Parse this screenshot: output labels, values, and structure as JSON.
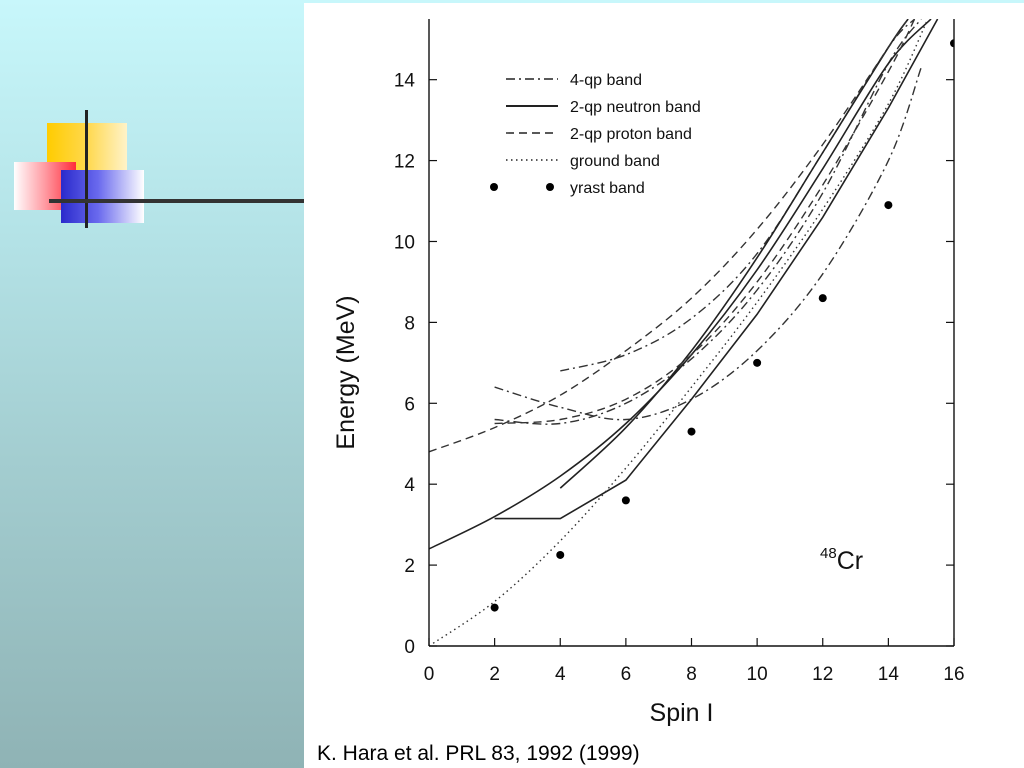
{
  "caption": "K. Hara et al. PRL 83, 1992 (1999)",
  "chart_data": {
    "type": "line",
    "title": "",
    "xlabel": "Spin I",
    "ylabel": "Energy (MeV)",
    "xlim": [
      0,
      16
    ],
    "ylim": [
      0,
      15.5
    ],
    "x_ticks": [
      0,
      2,
      4,
      6,
      8,
      10,
      12,
      14,
      16
    ],
    "y_ticks": [
      0,
      2,
      4,
      6,
      8,
      10,
      12,
      14
    ],
    "grid": false,
    "legend_position": "top-left",
    "annotation": {
      "sup": "48",
      "text": "Cr"
    },
    "series": [
      {
        "name": "4-qp band",
        "style": "dashdot",
        "lines": [
          {
            "x": [
              2,
              4,
              6,
              8,
              10,
              12,
              14,
              15
            ],
            "y": [
              6.4,
              5.9,
              5.6,
              6.1,
              7.3,
              9.2,
              12.0,
              14.3
            ]
          },
          {
            "x": [
              2,
              4,
              6,
              8,
              10,
              12,
              14,
              15
            ],
            "y": [
              5.6,
              5.5,
              6.0,
              7.1,
              8.8,
              11.2,
              14.4,
              15.5
            ]
          },
          {
            "x": [
              4,
              6,
              8,
              10,
              12,
              14,
              14.8
            ],
            "y": [
              6.8,
              7.2,
              8.1,
              9.7,
              12.2,
              14.8,
              15.5
            ]
          }
        ]
      },
      {
        "name": "2-qp neutron band",
        "style": "solid",
        "lines": [
          {
            "x": [
              0,
              2,
              4,
              6,
              8,
              10,
              12,
              14,
              15.3
            ],
            "y": [
              2.4,
              3.2,
              4.2,
              5.5,
              7.2,
              9.3,
              11.8,
              14.4,
              15.5
            ]
          },
          {
            "x": [
              2,
              4,
              6,
              8,
              10,
              12,
              14,
              15.5
            ],
            "y": [
              3.15,
              3.15,
              4.1,
              6.1,
              8.2,
              10.6,
              13.3,
              15.5
            ]
          },
          {
            "x": [
              4,
              6,
              8,
              10,
              12,
              14,
              14.6
            ],
            "y": [
              3.9,
              5.4,
              7.3,
              9.6,
              12.2,
              14.8,
              15.5
            ]
          }
        ]
      },
      {
        "name": "2-qp proton band",
        "style": "dashed",
        "lines": [
          {
            "x": [
              0,
              2,
              4,
              6,
              8,
              10,
              12,
              14,
              14.6
            ],
            "y": [
              4.8,
              5.4,
              6.2,
              7.3,
              8.6,
              10.3,
              12.4,
              14.8,
              15.5
            ]
          },
          {
            "x": [
              2,
              4,
              6,
              8,
              10,
              12,
              14,
              14.8
            ],
            "y": [
              5.5,
              5.6,
              6.1,
              7.2,
              9.0,
              11.4,
              14.2,
              15.5
            ]
          }
        ]
      },
      {
        "name": "ground band",
        "style": "dotted",
        "lines": [
          {
            "x": [
              0,
              2,
              4,
              6,
              8,
              10,
              12,
              14,
              15.2
            ],
            "y": [
              0.0,
              1.1,
              2.6,
              4.4,
              6.4,
              8.5,
              10.8,
              13.4,
              15.5
            ]
          }
        ]
      },
      {
        "name": "yrast band",
        "style": "points",
        "x": [
          2,
          4,
          6,
          8,
          10,
          12,
          14,
          16
        ],
        "y": [
          0.95,
          2.25,
          3.6,
          5.3,
          7.0,
          8.6,
          10.9,
          14.9
        ]
      }
    ]
  }
}
